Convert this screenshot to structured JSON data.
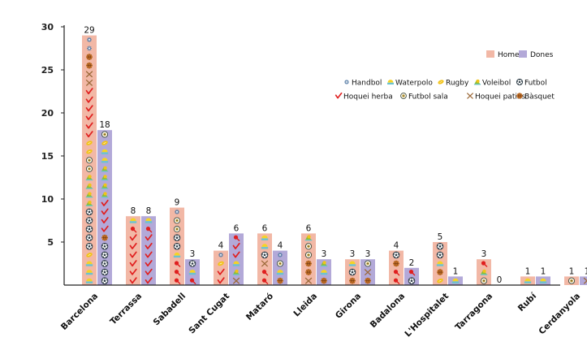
{
  "chart_data": {
    "type": "bar",
    "title": "",
    "xlabel": "",
    "ylabel": "",
    "ylim": [
      0,
      30
    ],
    "yticks": [
      5,
      10,
      15,
      20,
      25,
      30
    ],
    "categories": [
      "Barcelona",
      "Terrassa",
      "Sabadell",
      "Sant Cugat",
      "Mataró",
      "Lleida",
      "Girona",
      "Badalona",
      "L'Hospitalet",
      "Tarragona",
      "Rubí",
      "Cerdanyola"
    ],
    "highlight_category": "Sant Cugat",
    "highlight_color": "#e0201b",
    "series": [
      {
        "name": "Homes",
        "color": "#f2b8a6",
        "values": [
          29,
          8,
          9,
          4,
          6,
          6,
          3,
          4,
          5,
          3,
          1,
          1
        ]
      },
      {
        "name": "Dones",
        "color": "#b3a9d8",
        "values": [
          18,
          8,
          3,
          6,
          4,
          3,
          3,
          2,
          1,
          0,
          1,
          1
        ]
      }
    ],
    "sports": [
      {
        "key": "handbol",
        "name": "Handbol",
        "icon": "handball-icon"
      },
      {
        "key": "waterpolo",
        "name": "Waterpolo",
        "icon": "water-polo-icon"
      },
      {
        "key": "rugby",
        "name": "Rugby",
        "icon": "rugby-icon"
      },
      {
        "key": "voleibol",
        "name": "Voleibol",
        "icon": "volleyball-icon"
      },
      {
        "key": "futbol",
        "name": "Futbol",
        "icon": "football-icon"
      },
      {
        "key": "hoquei_herba",
        "name": "Hoquei herba",
        "icon": "field-hockey-icon"
      },
      {
        "key": "futbol_sala",
        "name": "Futbol sala",
        "icon": "futsal-icon"
      },
      {
        "key": "hoquei_patins",
        "name": "Hoquei patins",
        "icon": "roller-hockey-icon"
      },
      {
        "key": "basquet",
        "name": "Bàsquet",
        "icon": "basketball-icon"
      }
    ],
    "legend_position": "top-right"
  }
}
